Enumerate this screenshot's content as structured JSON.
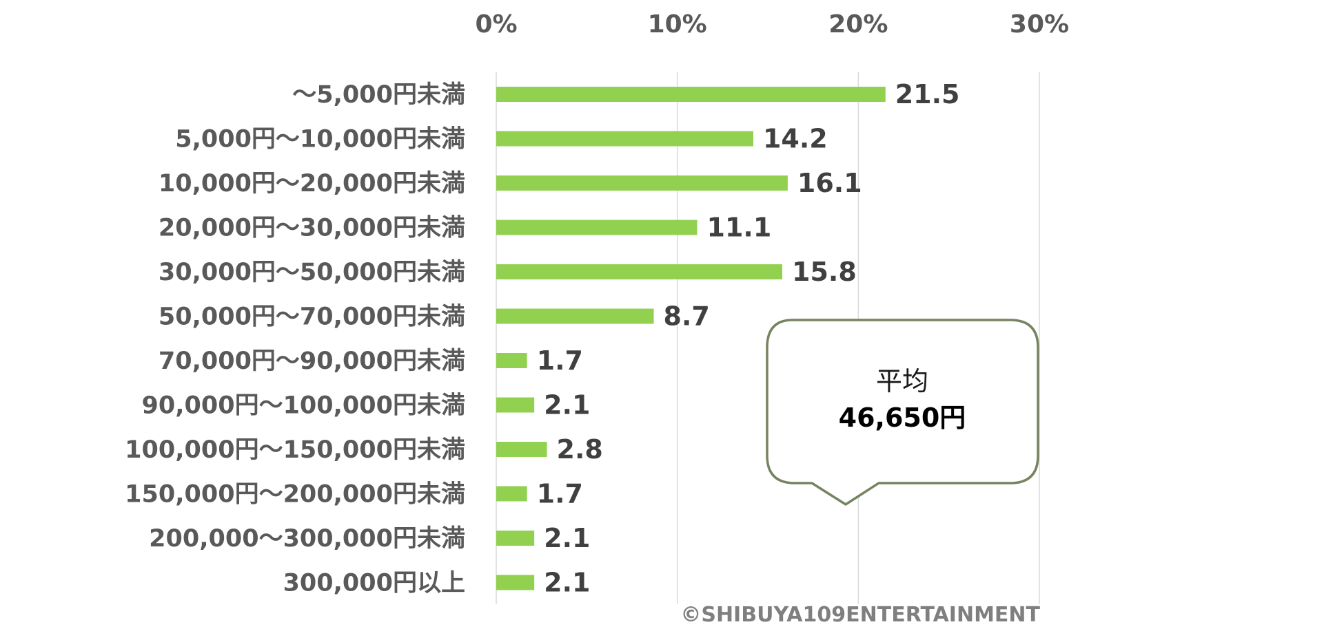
{
  "chart_data": {
    "type": "bar",
    "orientation": "horizontal",
    "categories": [
      "〜5,000円未満",
      "5,000円〜10,000円未満",
      "10,000円〜20,000円未満",
      "20,000円〜30,000円未満",
      "30,000円〜50,000円未満",
      "50,000円〜70,000円未満",
      "70,000円〜90,000円未満",
      "90,000円〜100,000円未満",
      "100,000円〜150,000円未満",
      "150,000円〜200,000円未満",
      "200,000〜300,000円未満",
      "300,000円以上"
    ],
    "values": [
      21.5,
      14.2,
      16.1,
      11.1,
      15.8,
      8.7,
      1.7,
      2.1,
      2.8,
      1.7,
      2.1,
      2.1
    ],
    "value_labels": [
      "21.5",
      "14.2",
      "16.1",
      "11.1",
      "15.8",
      "8.7",
      "1.7",
      "2.1",
      "2.8",
      "1.7",
      "2.1",
      "2.1"
    ],
    "xlim": [
      0,
      30
    ],
    "x_ticks": [
      0,
      10,
      20,
      30
    ],
    "x_tick_labels": [
      "0%",
      "10%",
      "20%",
      "30%"
    ],
    "axis_position": "top",
    "grid": true,
    "bar_color": "#92d050",
    "grid_color": "#d9d9d9",
    "callout": {
      "line1": "平均",
      "line2": "46,650円",
      "border_color": "#76835f"
    },
    "copyright": "©SHIBUYA109ENTERTAINMENT"
  }
}
